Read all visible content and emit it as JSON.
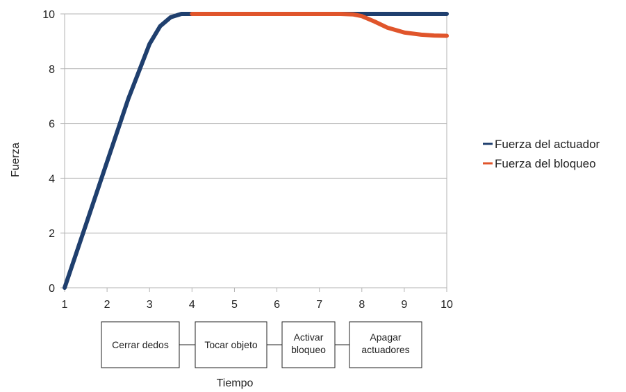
{
  "chart_data": {
    "type": "line",
    "title": "",
    "xlabel": "Tiempo",
    "ylabel": "Fuerza",
    "xlim": [
      1,
      10
    ],
    "ylim": [
      0,
      10
    ],
    "x_ticks": [
      1,
      2,
      3,
      4,
      5,
      6,
      7,
      8,
      9,
      10
    ],
    "y_ticks": [
      0,
      2,
      4,
      6,
      8,
      10
    ],
    "grid": "horizontal",
    "legend_position": "right",
    "series": [
      {
        "name": "Fuerza del actuador",
        "color": "#1f3f6e",
        "x": [
          1,
          1.5,
          2,
          2.5,
          3,
          3.25,
          3.5,
          3.75,
          4,
          5,
          6,
          7,
          8,
          9,
          10
        ],
        "y": [
          0,
          2.3,
          4.6,
          6.9,
          8.9,
          9.55,
          9.88,
          10,
          10,
          10,
          10,
          10,
          10,
          10,
          10
        ]
      },
      {
        "name": "Fuerza del bloqueo",
        "color": "#e0552b",
        "x": [
          4,
          5,
          6,
          7,
          7.5,
          7.8,
          8,
          8.3,
          8.6,
          9,
          9.4,
          9.7,
          10
        ],
        "y": [
          10,
          10,
          10,
          10,
          10,
          9.98,
          9.92,
          9.72,
          9.5,
          9.32,
          9.24,
          9.21,
          9.2
        ]
      }
    ],
    "phases": [
      {
        "label_lines": [
          "Cerrar dedos"
        ]
      },
      {
        "label_lines": [
          "Tocar objeto"
        ]
      },
      {
        "label_lines": [
          "Activar",
          "bloqueo"
        ]
      },
      {
        "label_lines": [
          "Apagar",
          "actuadores"
        ]
      }
    ]
  }
}
